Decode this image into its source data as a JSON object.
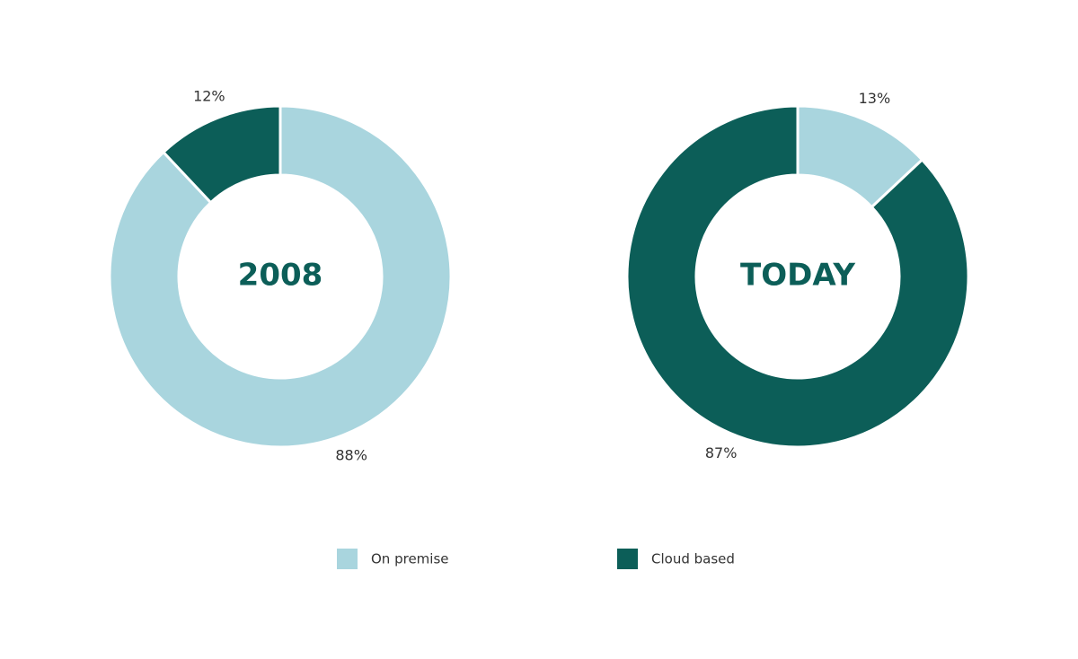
{
  "chart_data": [
    {
      "type": "donut",
      "title": "2008",
      "categories": [
        "On premise",
        "Cloud based"
      ],
      "values": [
        88,
        12
      ],
      "value_labels": [
        "88%",
        "12%"
      ],
      "colors": [
        "#a9d5de",
        "#0c5e58"
      ]
    },
    {
      "type": "donut",
      "title": "TODAY",
      "categories": [
        "On premise",
        "Cloud based"
      ],
      "values": [
        13,
        87
      ],
      "value_labels": [
        "13%",
        "87%"
      ],
      "colors": [
        "#a9d5de",
        "#0c5e58"
      ]
    }
  ]
}
